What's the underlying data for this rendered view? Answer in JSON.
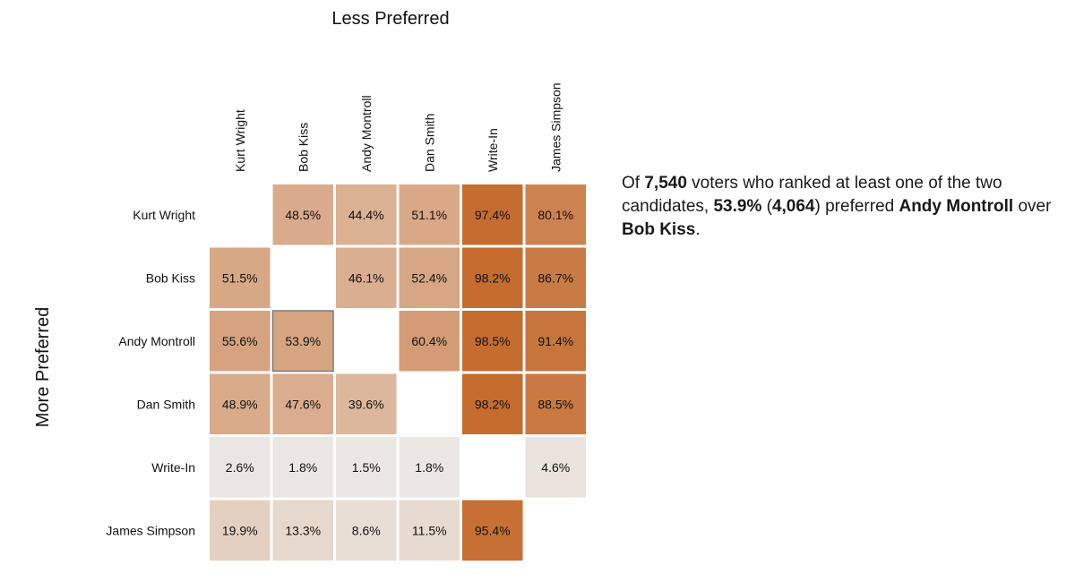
{
  "chart_data": {
    "type": "heatmap",
    "title": "",
    "xlabel": "Less Preferred",
    "ylabel": "More Preferred",
    "columns": [
      "Kurt Wright",
      "Bob Kiss",
      "Andy Montroll",
      "Dan Smith",
      "Write-In",
      "James Simpson"
    ],
    "rows": [
      "Kurt Wright",
      "Bob Kiss",
      "Andy Montroll",
      "Dan Smith",
      "Write-In",
      "James Simpson"
    ],
    "values": [
      [
        null,
        48.5,
        44.4,
        51.1,
        97.4,
        80.1
      ],
      [
        51.5,
        null,
        46.1,
        52.4,
        98.2,
        86.7
      ],
      [
        55.6,
        53.9,
        null,
        60.4,
        98.5,
        91.4
      ],
      [
        48.9,
        47.6,
        39.6,
        null,
        98.2,
        88.5
      ],
      [
        2.6,
        1.8,
        1.5,
        1.8,
        null,
        4.6
      ],
      [
        19.9,
        13.3,
        8.6,
        11.5,
        95.4,
        null
      ]
    ],
    "value_suffix": "%",
    "color_low": "#ece9e6",
    "color_high": "#c46a2c",
    "selected_cell": {
      "row": "Andy Montroll",
      "column": "Bob Kiss"
    }
  },
  "summary": {
    "prefix": "Of ",
    "voters": "7,540",
    "mid1": " voters who ranked at least one of the two candidates, ",
    "percent": "53.9%",
    "mid2": " (",
    "count": "4,064",
    "mid3": ") preferred ",
    "winner": "Andy Montroll",
    "mid4": " over ",
    "loser": "Bob Kiss",
    "suffix": "."
  }
}
